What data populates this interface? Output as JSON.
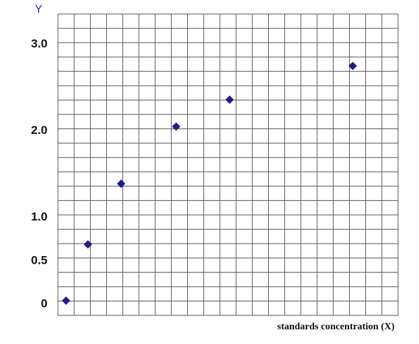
{
  "chart_data": {
    "type": "scatter",
    "y_label": "Y",
    "x_label": "standards concentration (X)",
    "x": [
      0.5,
      1.85,
      3.9,
      7.3,
      10.6,
      18.2
    ],
    "series": [
      {
        "color": "#1c1c8e",
        "values": [
          0.04,
          0.69,
          1.39,
          2.05,
          2.36,
          2.75
        ]
      }
    ],
    "xlim": [
      0,
      21
    ],
    "ylim": [
      -0.13,
      3.35
    ],
    "yticks": [
      0,
      0.5,
      {
        "value": 1,
        "label": "1.0"
      },
      {
        "value": 2,
        "label": "2.0"
      },
      {
        "value": 3,
        "label": "3.0"
      }
    ]
  }
}
